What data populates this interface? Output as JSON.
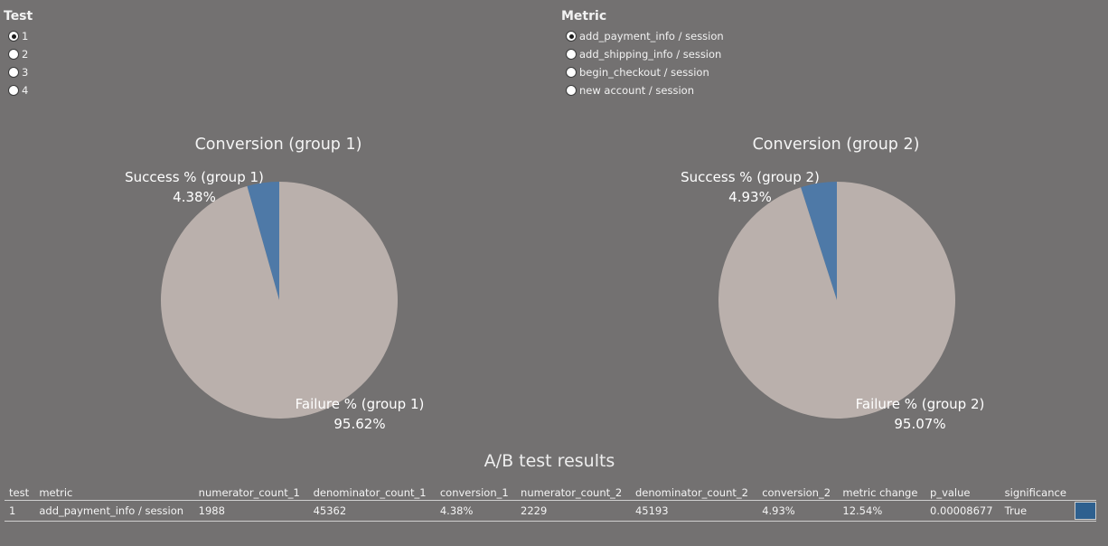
{
  "filters": {
    "test": {
      "title": "Test",
      "options": [
        "1",
        "2",
        "3",
        "4"
      ],
      "selected_index": 0
    },
    "metric": {
      "title": "Metric",
      "options": [
        "add_payment_info / session",
        "add_shipping_info / session",
        "begin_checkout / session",
        "new account / session"
      ],
      "selected_index": 0
    }
  },
  "charts": {
    "group1": {
      "title": "Conversion (group 1)",
      "success_label": "Success % (group 1)",
      "success_value": "4.38%",
      "failure_label": "Failure % (group 1)",
      "failure_value": "95.62%"
    },
    "group2": {
      "title": "Conversion (group 2)",
      "success_label": "Success % (group 2)",
      "success_value": "4.93%",
      "failure_label": "Failure % (group 2)",
      "failure_value": "95.07%"
    }
  },
  "chart_data": [
    {
      "type": "pie",
      "title": "Conversion (group 1)",
      "slices": [
        {
          "label": "Success % (group 1)",
          "value": 4.38,
          "color": "#4e79a7"
        },
        {
          "label": "Failure % (group 1)",
          "value": 95.62,
          "color": "#bab0ac"
        }
      ]
    },
    {
      "type": "pie",
      "title": "Conversion (group 2)",
      "slices": [
        {
          "label": "Success % (group 2)",
          "value": 4.93,
          "color": "#4e79a7"
        },
        {
          "label": "Failure % (group 2)",
          "value": 95.07,
          "color": "#bab0ac"
        }
      ]
    }
  ],
  "results": {
    "title": "A/B test results",
    "headers": [
      "test",
      "metric",
      "numerator_count_1",
      "denominator_count_1",
      "conversion_1",
      "numerator_count_2",
      "denominator_count_2",
      "conversion_2",
      "metric change",
      "p_value",
      "significance"
    ],
    "rows": [
      [
        "1",
        "add_payment_info / session",
        "1988",
        "45362",
        "4.38%",
        "2229",
        "45193",
        "4.93%",
        "12.54%",
        "0.00008677",
        "True"
      ]
    ],
    "significance_color": "#2e608f"
  },
  "colors": {
    "background": "#737171",
    "success": "#4e79a7",
    "failure": "#bab0ac"
  }
}
